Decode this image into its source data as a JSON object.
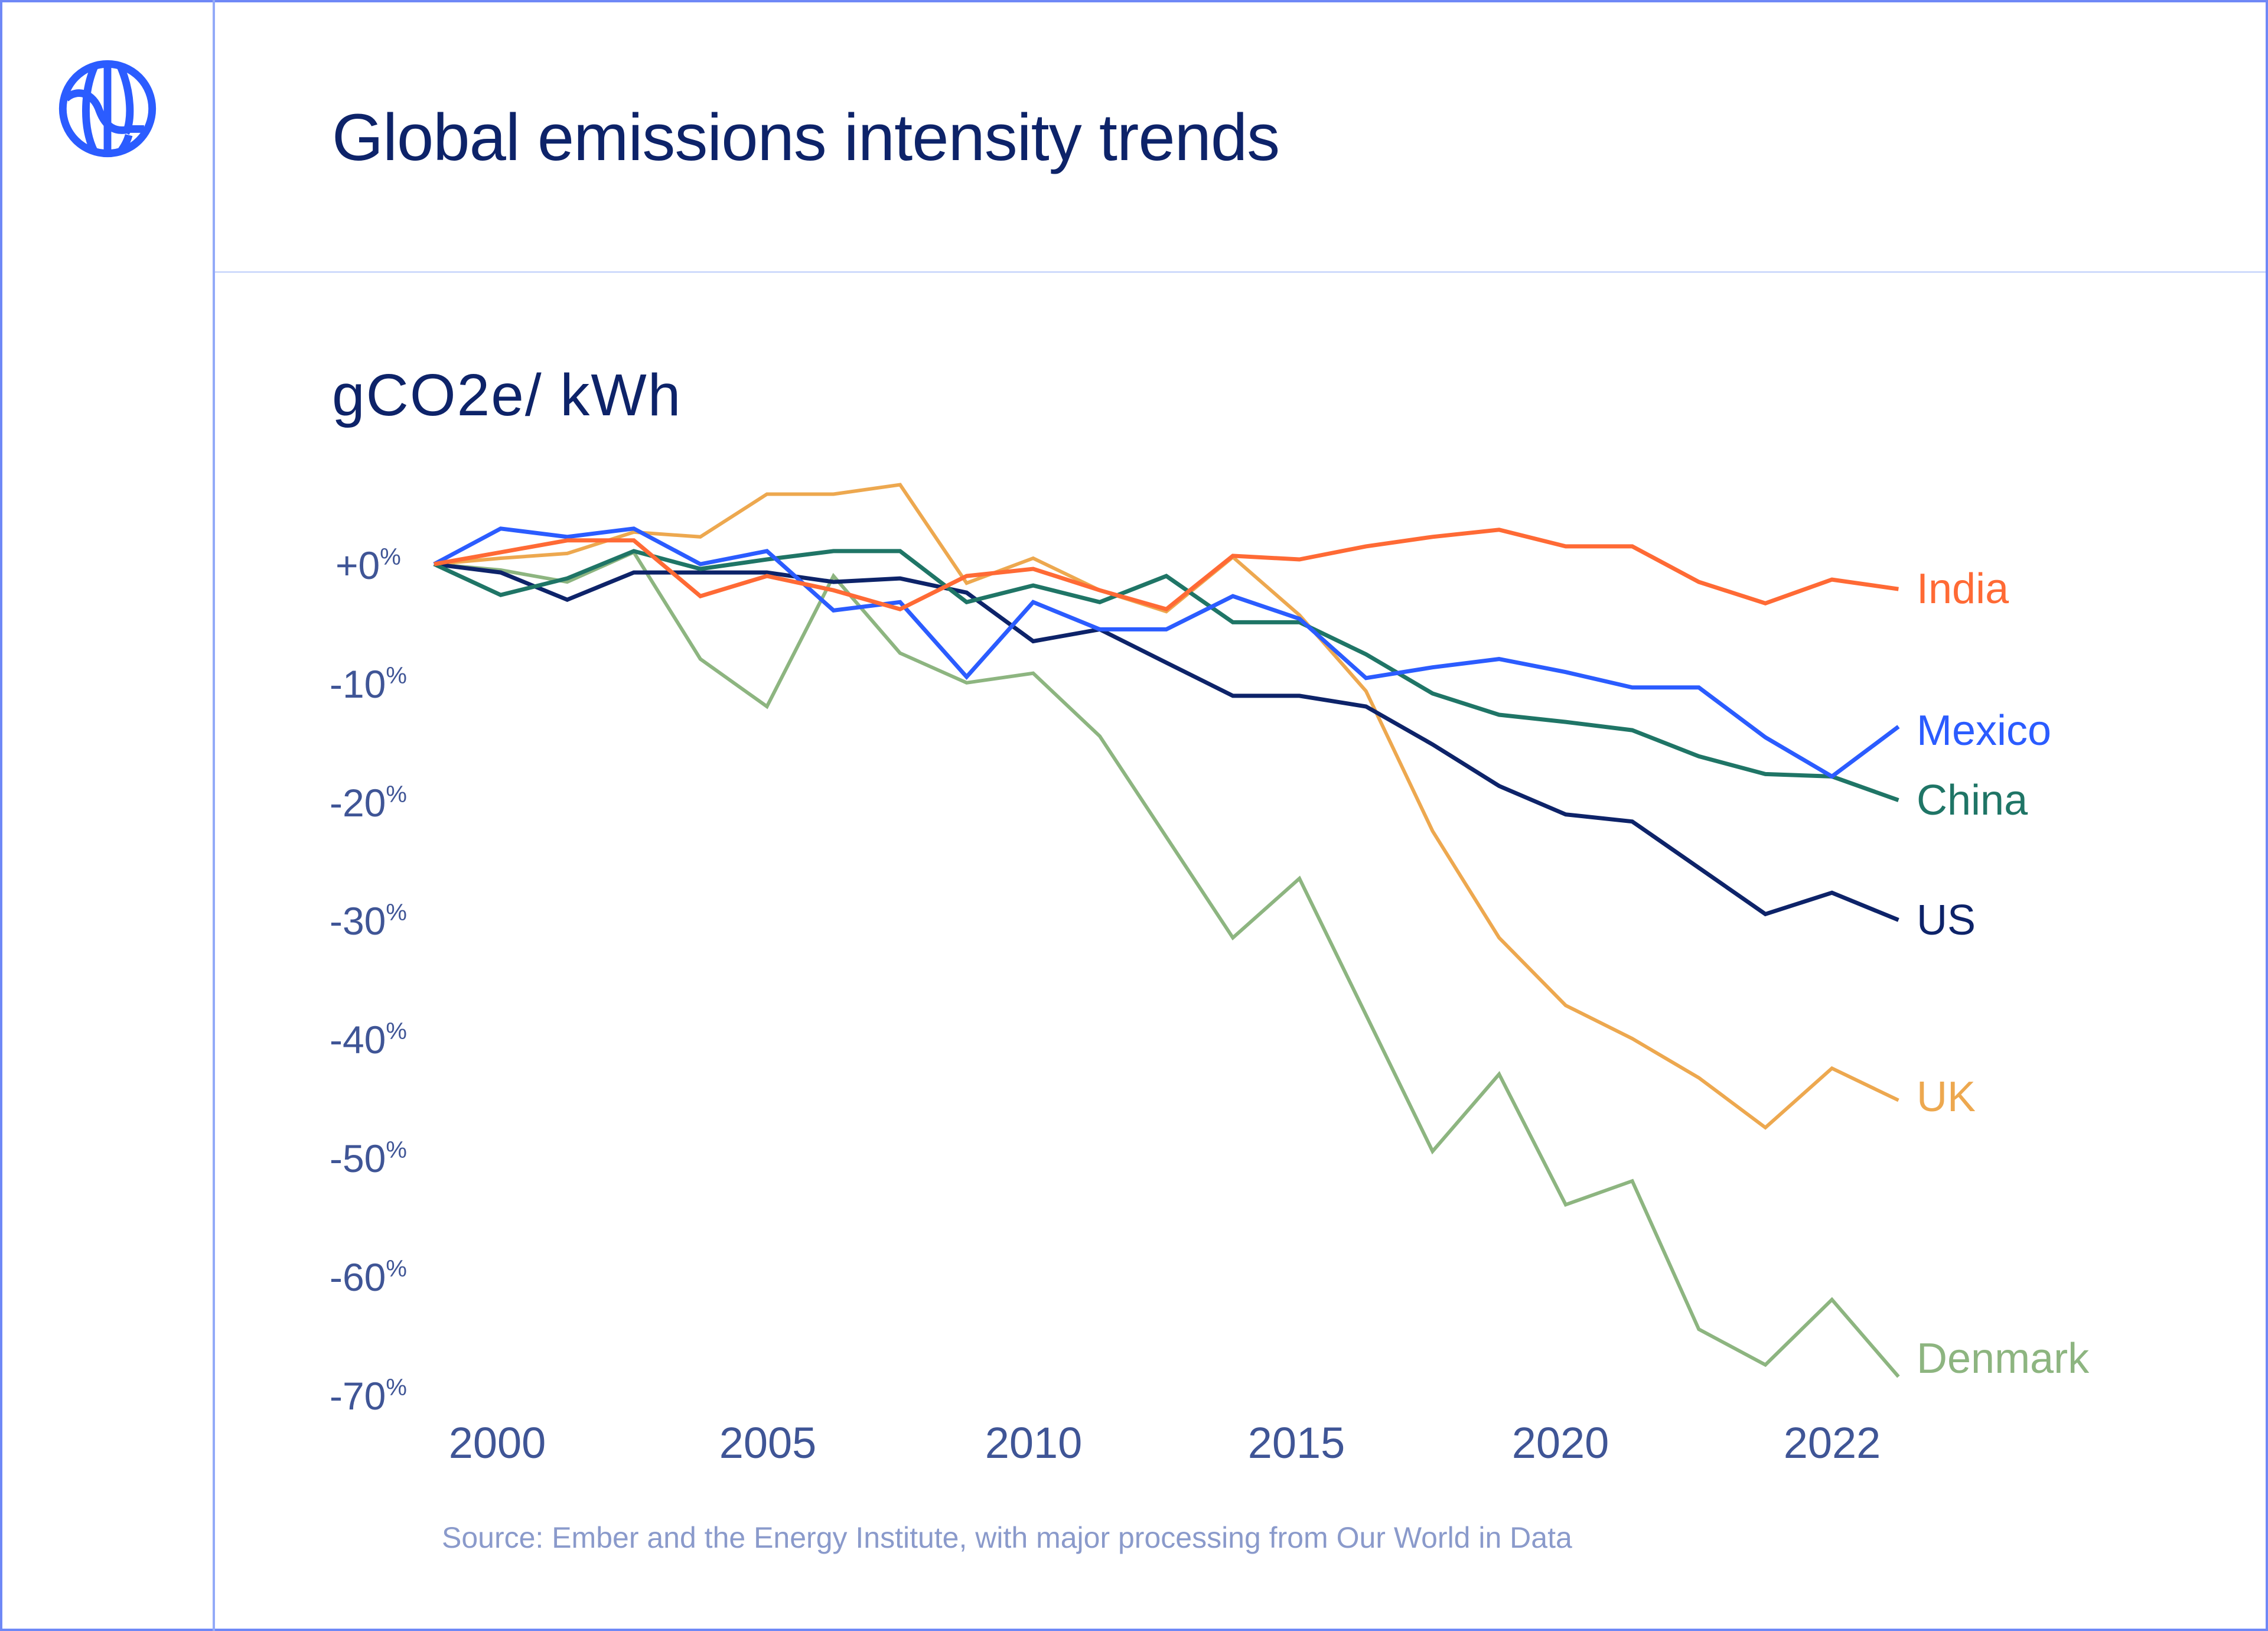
{
  "header": {
    "title": "Global emissions intensity trends",
    "logo_icon": "globe-icon"
  },
  "colors": {
    "border": "#6f88f6",
    "title": "#0d2369",
    "axis_text": "#3f5596",
    "source_text": "#8a9acb",
    "logo": "#2b5cff"
  },
  "footer": {
    "source": "Source: Ember and the Energy Institute, with major processing from Our World in Data"
  },
  "chart_data": {
    "type": "line",
    "title": "Global emissions intensity trends",
    "subtitle": "gCO2e/ kWh",
    "xlabel": "",
    "ylabel": "gCO2e/ kWh",
    "x": [
      2000,
      2001,
      2002,
      2003,
      2004,
      2005,
      2006,
      2007,
      2008,
      2009,
      2010,
      2011,
      2012,
      2013,
      2014,
      2015,
      2016,
      2017,
      2018,
      2019,
      2020,
      2021,
      2022
    ],
    "x_ticks": [
      {
        "label": "2000"
      },
      {
        "label": "2005"
      },
      {
        "label": "2010"
      },
      {
        "label": "2015"
      },
      {
        "label": "2020"
      },
      {
        "label": "2022"
      }
    ],
    "y_ticks": [
      {
        "value": 0,
        "label": "+0",
        "unit": "%"
      },
      {
        "value": -10,
        "label": "-10",
        "unit": "%"
      },
      {
        "value": -20,
        "label": "-20",
        "unit": "%"
      },
      {
        "value": -30,
        "label": "-30",
        "unit": "%"
      },
      {
        "value": -40,
        "label": "-40",
        "unit": "%"
      },
      {
        "value": -50,
        "label": "-50",
        "unit": "%"
      },
      {
        "value": -60,
        "label": "-60",
        "unit": "%"
      },
      {
        "value": -70,
        "label": "-70",
        "unit": "%"
      }
    ],
    "ylim": [
      -70,
      7
    ],
    "xlim": [
      2000,
      2022
    ],
    "grid": false,
    "legend": "inline-right",
    "series": [
      {
        "name": "India",
        "color": "#ff6a35",
        "values": [
          0,
          1,
          2,
          2,
          -2.7,
          -1,
          -2.2,
          -3.8,
          -1,
          -0.4,
          -2.2,
          -3.8,
          0.7,
          0.4,
          1.5,
          2.3,
          2.9,
          1.5,
          1.5,
          -1.5,
          -3.3,
          -1.3,
          -2.1
        ]
      },
      {
        "name": "Mexico",
        "color": "#2b5cff",
        "values": [
          0,
          3,
          2.3,
          3,
          0,
          1.1,
          -3.9,
          -3.2,
          -9.5,
          -3.2,
          -5.5,
          -5.5,
          -2.7,
          -4.6,
          -9.6,
          -8.7,
          -8,
          -9.1,
          -10.4,
          -10.4,
          -14.6,
          -17.9,
          -13.7
        ]
      },
      {
        "name": "China",
        "color": "#1f7566",
        "values": [
          0,
          -2.6,
          -1.2,
          1.1,
          -0.4,
          0.4,
          1.1,
          1.1,
          -3.2,
          -1.8,
          -3.2,
          -1,
          -4.9,
          -4.9,
          -7.6,
          -10.9,
          -12.7,
          -13.3,
          -14,
          -16.2,
          -17.7,
          -17.9,
          -19.9
        ]
      },
      {
        "name": "US",
        "color": "#0d2369",
        "values": [
          0,
          -0.7,
          -3,
          -0.7,
          -0.7,
          -0.7,
          -1.5,
          -1.2,
          -2.4,
          -6.5,
          -5.5,
          -8.3,
          -11.1,
          -11.1,
          -12,
          -15.2,
          -18.7,
          -21.1,
          -21.7,
          -25.6,
          -29.5,
          -27.7,
          -30
        ]
      },
      {
        "name": "UK",
        "color": "#eda84f",
        "values": [
          0,
          0.5,
          0.9,
          2.7,
          2.3,
          5.9,
          5.9,
          6.7,
          -1.6,
          0.5,
          -2.2,
          -4,
          0.6,
          -4.3,
          -10.7,
          -22.5,
          -31.5,
          -37.2,
          -40,
          -43.3,
          -47.5,
          -42.5,
          -45.2
        ]
      },
      {
        "name": "Denmark",
        "color": "#8db580",
        "values": [
          0,
          -0.5,
          -1.5,
          1,
          -8,
          -12,
          -1,
          -7.5,
          -10,
          -9.2,
          -14.5,
          -23,
          -31.5,
          -26.5,
          -38,
          -49.5,
          -43,
          -54,
          -52,
          -64.5,
          -67.5,
          -62,
          -68.5
        ]
      }
    ]
  }
}
